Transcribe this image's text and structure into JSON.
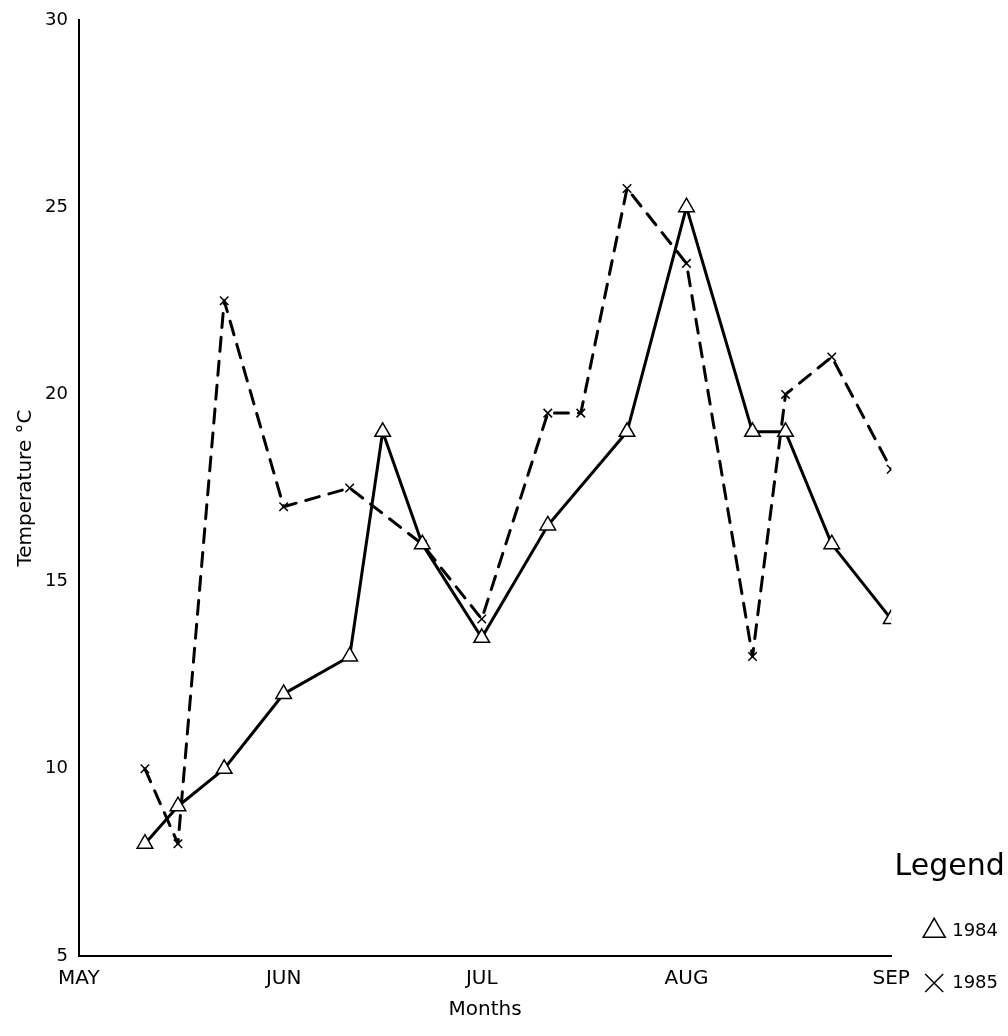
{
  "chart_data": {
    "type": "line",
    "xlabel": "Months",
    "ylabel": "Temperature °C",
    "legend_title": "Legend",
    "legend": "right",
    "grid": false,
    "xlim": [
      "--05-01",
      "--09-01"
    ],
    "xticks": [
      {
        "value": "--05-01",
        "label": "MAY"
      },
      {
        "value": "--06-01",
        "label": "JUN"
      },
      {
        "value": "--07-01",
        "label": "JUL"
      },
      {
        "value": "--08-01",
        "label": "AUG"
      },
      {
        "value": "--09-01",
        "label": "SEP"
      }
    ],
    "ylim": [
      5,
      30
    ],
    "yticks": [
      5,
      10,
      15,
      20,
      25,
      30
    ],
    "series": [
      {
        "name": "1984",
        "color": "#000000",
        "marker": "triangle",
        "line_style": "solid",
        "x": [
          "--05-11",
          "--05-16",
          "--05-23",
          "--06-01",
          "--06-11",
          "--06-16",
          "--06-22",
          "--07-01",
          "--07-11",
          "--07-23",
          "--08-01",
          "--08-11",
          "--08-16",
          "--08-23",
          "--09-01"
        ],
        "values": [
          8,
          9,
          10,
          12,
          13,
          19,
          16,
          13.5,
          16.5,
          19,
          25,
          19,
          19,
          16,
          14
        ]
      },
      {
        "name": "1985",
        "color": "#000000",
        "marker": "cross",
        "line_style": "dashed",
        "x": [
          "--05-11",
          "--05-16",
          "--05-23",
          "--06-01",
          "--06-11",
          "--06-22",
          "--07-01",
          "--07-11",
          "--07-16",
          "--07-23",
          "--08-01",
          "--08-11",
          "--08-16",
          "--08-23",
          "--09-01"
        ],
        "values": [
          10,
          8,
          22.5,
          17,
          17.5,
          16,
          14,
          19.5,
          19.5,
          25.5,
          23.5,
          13,
          20,
          21,
          18
        ]
      }
    ]
  }
}
